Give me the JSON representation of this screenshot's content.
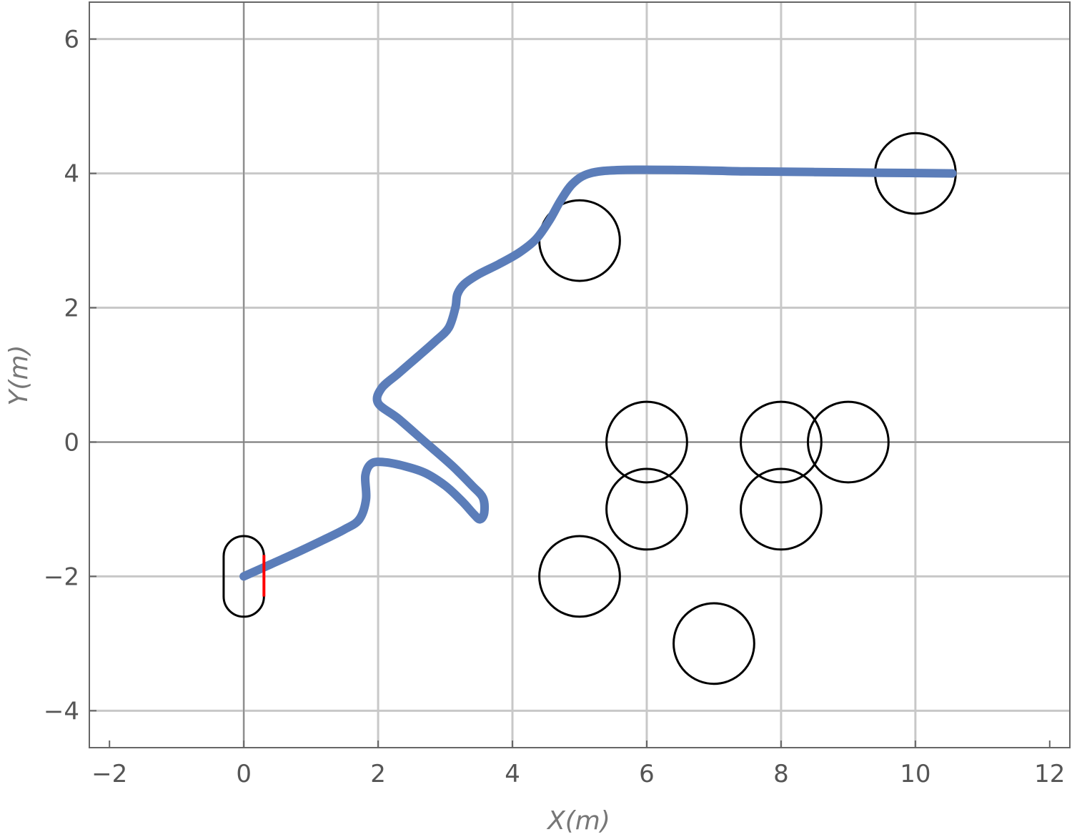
{
  "chart_data": {
    "type": "scatter",
    "xlabel": "X(m)",
    "ylabel": "Y(m)",
    "xlim": [
      -2.3,
      12.3
    ],
    "ylim": [
      -4.55,
      6.55
    ],
    "grid": true,
    "x_ticks": [
      -2,
      0,
      2,
      4,
      6,
      8,
      10,
      12
    ],
    "y_ticks": [
      -4,
      -2,
      0,
      2,
      4,
      6
    ],
    "tick_labels": {
      "x": [
        "−2",
        "0",
        "2",
        "4",
        "6",
        "8",
        "10",
        "12"
      ],
      "y": [
        "−4",
        "−2",
        "0",
        "2",
        "4",
        "6"
      ]
    },
    "colors": {
      "path": "#5B7DB9",
      "obstacle": "#000000",
      "robot": "#000000",
      "heading": "#FF0000",
      "grid": "#C8C8C8"
    },
    "path": [
      [
        0.0,
        -2.0
      ],
      [
        0.4,
        -1.82
      ],
      [
        0.8,
        -1.64
      ],
      [
        1.2,
        -1.45
      ],
      [
        1.5,
        -1.3
      ],
      [
        1.72,
        -1.15
      ],
      [
        1.82,
        -0.85
      ],
      [
        1.81,
        -0.5
      ],
      [
        1.9,
        -0.32
      ],
      [
        2.1,
        -0.3
      ],
      [
        2.4,
        -0.36
      ],
      [
        2.7,
        -0.46
      ],
      [
        3.0,
        -0.65
      ],
      [
        3.25,
        -0.88
      ],
      [
        3.43,
        -1.08
      ],
      [
        3.52,
        -1.15
      ],
      [
        3.58,
        -1.05
      ],
      [
        3.56,
        -0.83
      ],
      [
        3.4,
        -0.65
      ],
      [
        3.1,
        -0.35
      ],
      [
        2.7,
        0.0
      ],
      [
        2.3,
        0.35
      ],
      [
        2.0,
        0.58
      ],
      [
        2.05,
        0.8
      ],
      [
        2.3,
        1.02
      ],
      [
        2.6,
        1.28
      ],
      [
        2.85,
        1.5
      ],
      [
        3.05,
        1.7
      ],
      [
        3.15,
        2.0
      ],
      [
        3.18,
        2.2
      ],
      [
        3.28,
        2.35
      ],
      [
        3.5,
        2.5
      ],
      [
        3.8,
        2.65
      ],
      [
        4.1,
        2.82
      ],
      [
        4.35,
        3.02
      ],
      [
        4.55,
        3.3
      ],
      [
        4.72,
        3.6
      ],
      [
        4.9,
        3.85
      ],
      [
        5.15,
        4.0
      ],
      [
        5.6,
        4.05
      ],
      [
        6.5,
        4.05
      ],
      [
        7.5,
        4.03
      ],
      [
        8.5,
        4.02
      ],
      [
        9.5,
        4.01
      ],
      [
        10.55,
        4.0
      ]
    ],
    "obstacles": [
      {
        "x": 5,
        "y": 3,
        "r": 0.6
      },
      {
        "x": 10,
        "y": 4,
        "r": 0.6
      },
      {
        "x": 6,
        "y": 0,
        "r": 0.6
      },
      {
        "x": 6,
        "y": -1,
        "r": 0.6
      },
      {
        "x": 8,
        "y": 0,
        "r": 0.6
      },
      {
        "x": 8,
        "y": -1,
        "r": 0.6
      },
      {
        "x": 9,
        "y": 0,
        "r": 0.6
      },
      {
        "x": 5,
        "y": -2,
        "r": 0.6
      },
      {
        "x": 7,
        "y": -3,
        "r": 0.6
      }
    ],
    "robot": {
      "x": 0,
      "y": -2,
      "width": 0.6,
      "height": 1.2,
      "heading_x": 0.3,
      "heading_y_range": [
        -2.3,
        -1.68
      ]
    }
  }
}
